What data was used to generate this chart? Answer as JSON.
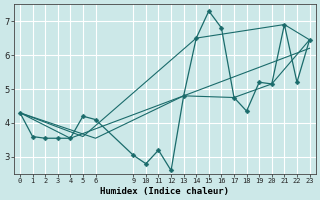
{
  "xlabel": "Humidex (Indice chaleur)",
  "ylabel": "",
  "bg_color": "#cce8e8",
  "grid_color": "#ffffff",
  "line_color": "#1a6b6b",
  "xlim": [
    -0.5,
    23.5
  ],
  "ylim": [
    2.5,
    7.5
  ],
  "yticks": [
    3,
    4,
    5,
    6,
    7
  ],
  "xtick_vals": [
    0,
    1,
    2,
    3,
    4,
    5,
    6,
    9,
    10,
    11,
    12,
    13,
    14,
    15,
    16,
    17,
    18,
    19,
    20,
    21,
    22,
    23
  ],
  "series_main": {
    "x": [
      0,
      1,
      2,
      3,
      4,
      5,
      6,
      9,
      10,
      11,
      12,
      13,
      14,
      15,
      16,
      17,
      18,
      19,
      20,
      21,
      22,
      23
    ],
    "y": [
      4.3,
      3.6,
      3.55,
      3.55,
      3.55,
      4.2,
      4.1,
      3.05,
      2.8,
      3.2,
      2.6,
      4.8,
      6.5,
      7.3,
      6.8,
      4.75,
      4.35,
      5.2,
      5.15,
      6.9,
      5.2,
      6.45
    ]
  },
  "series_extra": [
    {
      "x": [
        0,
        5,
        14,
        21,
        23
      ],
      "y": [
        4.3,
        3.6,
        6.5,
        6.9,
        6.45
      ]
    },
    {
      "x": [
        0,
        4,
        13,
        23
      ],
      "y": [
        4.3,
        3.55,
        4.8,
        6.2
      ]
    },
    {
      "x": [
        0,
        6,
        13,
        17,
        20,
        23
      ],
      "y": [
        4.3,
        3.55,
        4.8,
        4.75,
        5.15,
        6.45
      ]
    }
  ]
}
